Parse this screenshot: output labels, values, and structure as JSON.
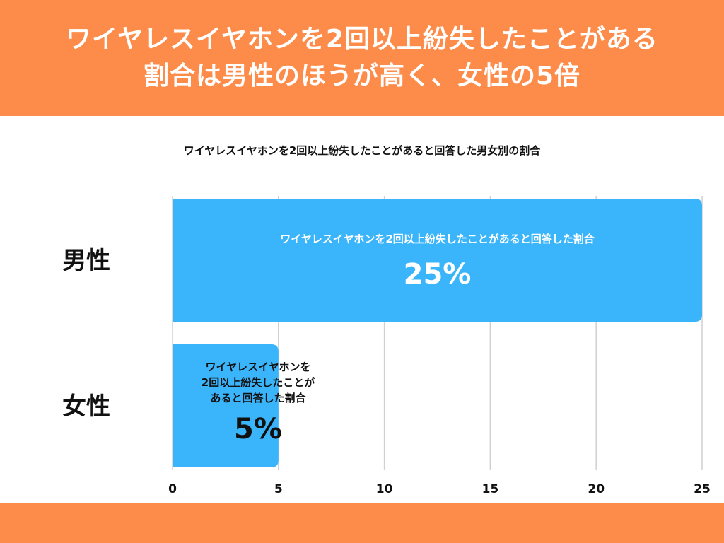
{
  "header": {
    "title_line1": "ワイヤレスイヤホンを2回以上紛失したことがある",
    "title_line2": "割合は男性のほうが高く、女性の5倍"
  },
  "colors": {
    "accent": "#fd8c4a",
    "bar": "#3ab5fb",
    "grid": "#d0d0d0",
    "text": "#111111"
  },
  "chart_data": {
    "type": "bar",
    "orientation": "horizontal",
    "title": "ワイヤレスイヤホンを2回以上紛失したことがあると回答した男女別の割合",
    "categories": [
      "男性",
      "女性"
    ],
    "values": [
      25,
      5
    ],
    "unit": "%",
    "bar_captions": [
      [
        "ワイヤレスイヤホンを2回以上紛失したことがあると回答した割合"
      ],
      [
        "ワイヤレスイヤホンを",
        "2回以上紛失したことが",
        "あると回答した割合"
      ]
    ],
    "value_labels": [
      "25%",
      "5%"
    ],
    "xlim": [
      0,
      25
    ],
    "xticks": [
      0,
      5,
      10,
      15,
      20,
      25
    ],
    "grid": true,
    "legend": "none"
  }
}
